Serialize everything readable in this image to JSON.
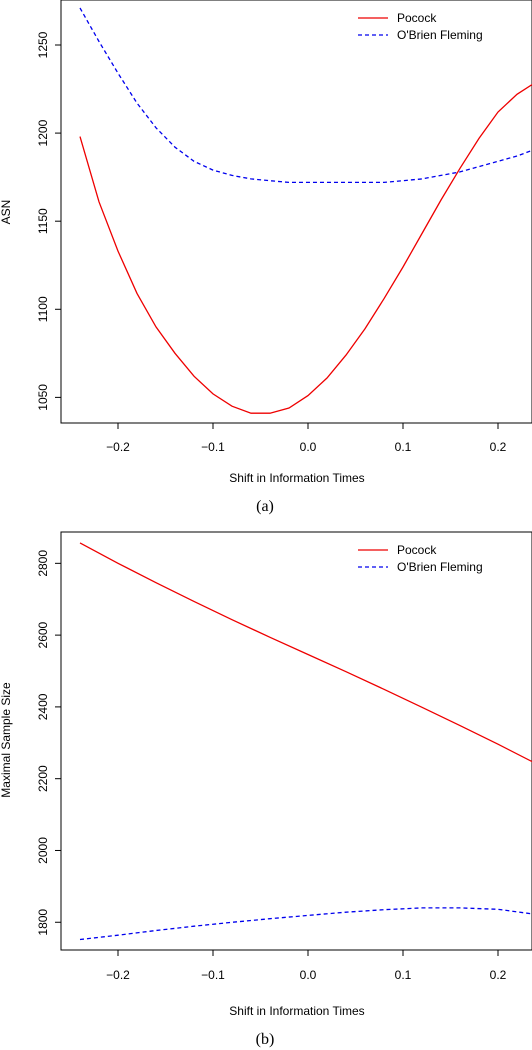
{
  "chart_data": [
    {
      "type": "line",
      "caption": "(a)",
      "xlabel": "Shift in Information Times",
      "ylabel": "ASN",
      "xlim": [
        -0.24,
        0.24
      ],
      "ylim": [
        1040,
        1271
      ],
      "xticks": [
        -0.2,
        -0.1,
        0.0,
        0.1,
        0.2
      ],
      "xtick_labels": [
        "−0.2",
        "−0.1",
        "0.0",
        "0.1",
        "0.2"
      ],
      "yticks": [
        1050,
        1100,
        1150,
        1200,
        1250
      ],
      "ytick_labels": [
        "1050",
        "1100",
        "1150",
        "1200",
        "1250"
      ],
      "legend_position": "top-right",
      "grid": false,
      "series": [
        {
          "name": "Pocock",
          "color": "#ee0000",
          "dash": "solid",
          "x": [
            -0.24,
            -0.22,
            -0.2,
            -0.18,
            -0.16,
            -0.14,
            -0.12,
            -0.1,
            -0.08,
            -0.06,
            -0.04,
            -0.02,
            0.0,
            0.02,
            0.04,
            0.06,
            0.08,
            0.1,
            0.12,
            0.14,
            0.16,
            0.18,
            0.2,
            0.22,
            0.24
          ],
          "y": [
            1198,
            1161,
            1133,
            1109,
            1090,
            1075,
            1062,
            1052,
            1045,
            1041,
            1041,
            1044,
            1051,
            1061,
            1074,
            1089,
            1106,
            1124,
            1143,
            1162,
            1180,
            1197,
            1212,
            1222,
            1229
          ]
        },
        {
          "name": "O'Brien Fleming",
          "color": "#0000ee",
          "dash": "dashed",
          "x": [
            -0.24,
            -0.22,
            -0.2,
            -0.18,
            -0.16,
            -0.14,
            -0.12,
            -0.1,
            -0.08,
            -0.06,
            -0.04,
            -0.02,
            0.0,
            0.02,
            0.04,
            0.06,
            0.08,
            0.1,
            0.12,
            0.14,
            0.16,
            0.18,
            0.2,
            0.22,
            0.24
          ],
          "y": [
            1271,
            1252,
            1234,
            1217,
            1203,
            1192,
            1184,
            1179,
            1176,
            1174,
            1173,
            1172,
            1172,
            1172,
            1172,
            1172,
            1172,
            1173,
            1174,
            1176,
            1178,
            1181,
            1184,
            1187,
            1191
          ]
        }
      ]
    },
    {
      "type": "line",
      "caption": "(b)",
      "xlabel": "Shift in Information Times",
      "ylabel": "Maximal Sample Size",
      "xlim": [
        -0.24,
        0.24
      ],
      "ylim": [
        1745,
        2865
      ],
      "xticks": [
        -0.2,
        -0.1,
        0.0,
        0.1,
        0.2
      ],
      "xtick_labels": [
        "−0.2",
        "−0.1",
        "0.0",
        "0.1",
        "0.2"
      ],
      "yticks": [
        1800,
        2000,
        2200,
        2400,
        2600,
        2800
      ],
      "ytick_labels": [
        "1800",
        "2000",
        "2200",
        "2400",
        "2600",
        "2800"
      ],
      "legend_position": "top-right",
      "grid": false,
      "series": [
        {
          "name": "Pocock",
          "color": "#ee0000",
          "dash": "solid",
          "x": [
            -0.24,
            -0.2,
            -0.16,
            -0.12,
            -0.08,
            -0.04,
            0.0,
            0.04,
            0.08,
            0.12,
            0.16,
            0.2,
            0.24
          ],
          "y": [
            2857,
            2800,
            2746,
            2694,
            2643,
            2594,
            2546,
            2498,
            2449,
            2399,
            2348,
            2296,
            2242
          ]
        },
        {
          "name": "O'Brien Fleming",
          "color": "#0000ee",
          "dash": "dashed",
          "x": [
            -0.24,
            -0.2,
            -0.16,
            -0.12,
            -0.08,
            -0.04,
            0.0,
            0.04,
            0.08,
            0.12,
            0.16,
            0.2,
            0.24
          ],
          "y": [
            1752,
            1764,
            1777,
            1789,
            1800,
            1810,
            1819,
            1828,
            1835,
            1840,
            1840,
            1836,
            1822
          ]
        }
      ]
    }
  ]
}
